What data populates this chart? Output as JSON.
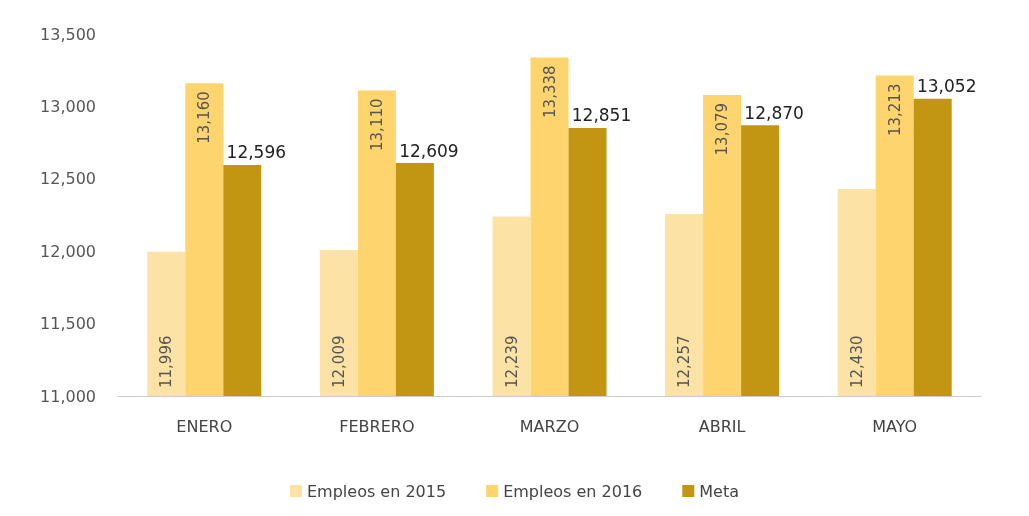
{
  "chart_data": {
    "type": "bar",
    "categories": [
      "ENERO",
      "FEBRERO",
      "MARZO",
      "ABRIL",
      "MAYO"
    ],
    "series": [
      {
        "name": "Empleos en 2015",
        "color": "#fde2a6",
        "values": [
          11996,
          12009,
          12239,
          12257,
          12430
        ],
        "value_labels": [
          "11,996",
          "12,009",
          "12,239",
          "12,257",
          "12,430"
        ]
      },
      {
        "name": "Empleos en 2016",
        "color": "#fdd46e",
        "values": [
          13160,
          13110,
          13338,
          13079,
          13213
        ],
        "value_labels": [
          "13,160",
          "13,110",
          "13,338",
          "13,079",
          "13,213"
        ]
      },
      {
        "name": "Meta",
        "color": "#c29612",
        "values": [
          12596,
          12609,
          12851,
          12870,
          13052
        ],
        "value_labels": [
          "12,596",
          "12,609",
          "12,851",
          "12,870",
          "13,052"
        ]
      }
    ],
    "ylim": [
      11000,
      13500
    ],
    "yticks": [
      {
        "value": 11000,
        "label": "11,000"
      },
      {
        "value": 11500,
        "label": "11,500"
      },
      {
        "value": 12000,
        "label": "12,000"
      },
      {
        "value": 12500,
        "label": "12,500"
      },
      {
        "value": 13000,
        "label": "13,000"
      },
      {
        "value": 13500,
        "label": "13,500"
      }
    ],
    "grid": false,
    "legend": "bottom"
  }
}
